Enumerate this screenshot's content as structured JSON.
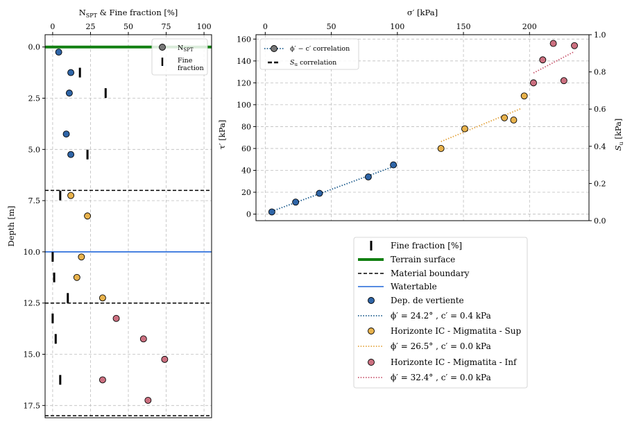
{
  "chart_data": [
    {
      "type": "scatter",
      "panel": "depth-profile",
      "xlabel": "N_SPT & Fine fraction [%]",
      "ylabel": "Depth [m]",
      "xlim": [
        -5,
        105
      ],
      "ylim": [
        18.1,
        -0.6
      ],
      "x_ticks": [
        "0",
        "25",
        "50",
        "75",
        "100"
      ],
      "y_ticks": [
        "0.0",
        "2.5",
        "5.0",
        "7.5",
        "10.0",
        "12.5",
        "15.0",
        "17.5"
      ],
      "grid": true,
      "terrain_surface_depth": 0,
      "watertable_depth": 10.0,
      "material_boundaries": [
        7.0,
        12.5,
        18.0
      ],
      "legend": {
        "placement": "top-right",
        "nspt_main": "N",
        "nspt_sub": "SPT",
        "fine_line1": "Fine",
        "fine_line2": "fraction"
      },
      "nspt_series": [
        {
          "name": "Dep. de vertiente",
          "color": "#2f65a7",
          "points": [
            [
              4,
              0.25
            ],
            [
              12,
              1.25
            ],
            [
              11,
              2.25
            ],
            [
              9,
              4.25
            ],
            [
              12,
              5.25
            ]
          ]
        },
        {
          "name": "Horizonte IC - Migmatita - Sup",
          "color": "#e8b24c",
          "points": [
            [
              12,
              7.25
            ],
            [
              23,
              8.25
            ],
            [
              19,
              10.25
            ],
            [
              16,
              11.25
            ],
            [
              33,
              12.25
            ]
          ]
        },
        {
          "name": "Horizonte IC - Migmatita - Inf",
          "color": "#cc7080",
          "points": [
            [
              42,
              13.25
            ],
            [
              60,
              14.25
            ],
            [
              74,
              15.25
            ],
            [
              33,
              16.25
            ],
            [
              63,
              17.25
            ]
          ]
        }
      ],
      "fine_fraction": [
        [
          18,
          1.25
        ],
        [
          35,
          2.25
        ],
        [
          23,
          5.25
        ],
        [
          5,
          7.25
        ],
        [
          0,
          10.25
        ],
        [
          1,
          11.25
        ],
        [
          10,
          12.25
        ],
        [
          0,
          13.25
        ],
        [
          2,
          14.25
        ],
        [
          5,
          16.25
        ]
      ]
    },
    {
      "type": "scatter",
      "panel": "strength",
      "xlabel": "σ′ [kPa]",
      "ylabel": "τ′ [kPa]",
      "ylabel_right": "S_u [kPa]",
      "xlim": [
        -7,
        245
      ],
      "ylim": [
        -6,
        164
      ],
      "ylim_right": [
        0.0,
        1.0
      ],
      "x_ticks": [
        "0",
        "50",
        "100",
        "150",
        "200"
      ],
      "y_ticks": [
        "0",
        "20",
        "40",
        "60",
        "80",
        "100",
        "120",
        "140",
        "160"
      ],
      "y_right_ticks": [
        "0.0",
        "0.2",
        "0.4",
        "0.6",
        "0.8",
        "1.0"
      ],
      "grid": true,
      "inner_legend": {
        "placement": "top-left",
        "corr_label": "ϕ′ − c′ correlation",
        "su_label": "correlation"
      },
      "series": [
        {
          "name": "Dep. de vertiente",
          "color": "#2f65a7",
          "points": [
            [
              5,
              2
            ],
            [
              23,
              11
            ],
            [
              41,
              19
            ],
            [
              78,
              34
            ],
            [
              97,
              45
            ]
          ],
          "fit": [
            [
              5,
              2.6
            ],
            [
              100,
              44.8
            ]
          ],
          "fit_color": "#1a5a8c",
          "fit_label": "ϕ′ = 24.2° , c′ = 0.4 kPa"
        },
        {
          "name": "Horizonte IC - Migmatita - Sup",
          "color": "#e8b24c",
          "points": [
            [
              133,
              60
            ],
            [
              151,
              78
            ],
            [
              181,
              88
            ],
            [
              188,
              86
            ],
            [
              196,
              108
            ]
          ],
          "fit": [
            [
              133,
              66.3
            ],
            [
              194,
              96.7
            ]
          ],
          "fit_color": "#e3a23a",
          "fit_label": "ϕ′ = 26.5° , c′ = 0.0 kPa"
        },
        {
          "name": "Horizonte IC - Migmatita - Inf",
          "color": "#cc7080",
          "points": [
            [
              203,
              120
            ],
            [
              210,
              141
            ],
            [
              218,
              156
            ],
            [
              226,
              122
            ],
            [
              234,
              154
            ]
          ],
          "fit": [
            [
              203,
              129
            ],
            [
              234,
              148.6
            ]
          ],
          "fit_color": "#c9566e",
          "fit_label": "ϕ′ = 32.4° , c′ = 0.0 kPa"
        }
      ]
    }
  ],
  "legend": {
    "fine_fraction": "Fine fraction [%]",
    "terrain_surface": "Terrain surface",
    "material_boundary": "Material boundary",
    "watertable": "Watertable"
  }
}
